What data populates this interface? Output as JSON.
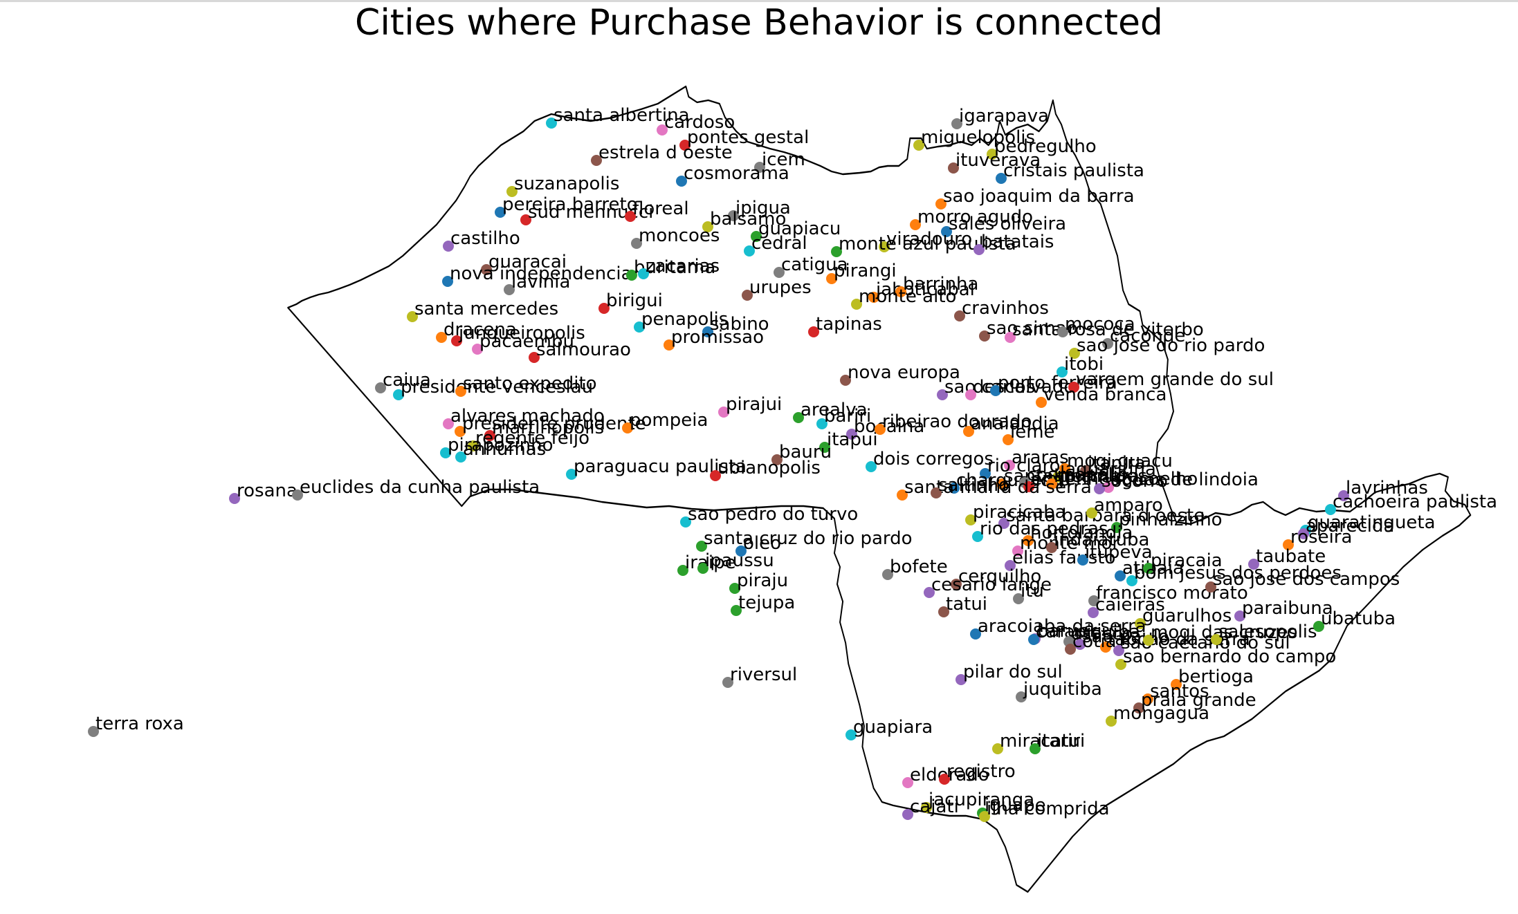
{
  "title": "Cities where Purchase Behavior is connected",
  "palette": {
    "blue": "#1f77b4",
    "orange": "#ff7f0e",
    "green": "#2ca02c",
    "red": "#d62728",
    "purple": "#9467bd",
    "brown": "#8c564b",
    "pink": "#e377c2",
    "gray": "#7f7f7f",
    "olive": "#bcbd22",
    "cyan": "#17becf"
  },
  "cities": [
    {
      "name": "santa albertina",
      "color": "cyan"
    },
    {
      "name": "cardoso",
      "color": "pink"
    },
    {
      "name": "pontes gestal",
      "color": "red"
    },
    {
      "name": "estrela d oeste",
      "color": "brown"
    },
    {
      "name": "icem",
      "color": "gray"
    },
    {
      "name": "cosmorama",
      "color": "blue"
    },
    {
      "name": "suzanapolis",
      "color": "olive"
    },
    {
      "name": "pereira barreto",
      "color": "blue"
    },
    {
      "name": "sud mennucci",
      "color": "red"
    },
    {
      "name": "floreal",
      "color": "red"
    },
    {
      "name": "ipigua",
      "color": "gray"
    },
    {
      "name": "balsamo",
      "color": "olive"
    },
    {
      "name": "guapiacu",
      "color": "green"
    },
    {
      "name": "moncoes",
      "color": "gray"
    },
    {
      "name": "cedral",
      "color": "cyan"
    },
    {
      "name": "castilho",
      "color": "purple"
    },
    {
      "name": "guaracai",
      "color": "brown"
    },
    {
      "name": "nova independencia",
      "color": "blue"
    },
    {
      "name": "buritama",
      "color": "green"
    },
    {
      "name": "zacarias",
      "color": "cyan"
    },
    {
      "name": "lavinia",
      "color": "gray"
    },
    {
      "name": "catigua",
      "color": "gray"
    },
    {
      "name": "urupes",
      "color": "brown"
    },
    {
      "name": "birigui",
      "color": "red"
    },
    {
      "name": "santa mercedes",
      "color": "olive"
    },
    {
      "name": "penapolis",
      "color": "cyan"
    },
    {
      "name": "sabino",
      "color": "blue"
    },
    {
      "name": "dracena",
      "color": "orange"
    },
    {
      "name": "junqueiropolis",
      "color": "red"
    },
    {
      "name": "pacaembu",
      "color": "pink"
    },
    {
      "name": "promissao",
      "color": "orange"
    },
    {
      "name": "salmourao",
      "color": "red"
    },
    {
      "name": "tapinas",
      "color": "red"
    },
    {
      "name": "caiua",
      "color": "gray"
    },
    {
      "name": "presidente venceslau",
      "color": "cyan"
    },
    {
      "name": "santo expedito",
      "color": "orange"
    },
    {
      "name": "alvares machado",
      "color": "pink"
    },
    {
      "name": "presidente prudente",
      "color": "orange"
    },
    {
      "name": "martinopolis",
      "color": "red"
    },
    {
      "name": "pompeia",
      "color": "orange"
    },
    {
      "name": "regente feijo",
      "color": "olive"
    },
    {
      "name": "pirapozinho",
      "color": "cyan"
    },
    {
      "name": "anhumas",
      "color": "cyan"
    },
    {
      "name": "pirajui",
      "color": "pink"
    },
    {
      "name": "arealva",
      "color": "green"
    },
    {
      "name": "bariri",
      "color": "cyan"
    },
    {
      "name": "bocaina",
      "color": "purple"
    },
    {
      "name": "itapui",
      "color": "green"
    },
    {
      "name": "bauru",
      "color": "brown"
    },
    {
      "name": "paraguacu paulista",
      "color": "cyan"
    },
    {
      "name": "ubianopolis",
      "color": "red"
    },
    {
      "name": "rosana",
      "color": "purple"
    },
    {
      "name": "euclides da cunha paulista",
      "color": "gray"
    },
    {
      "name": "sao pedro do turvo",
      "color": "cyan"
    },
    {
      "name": "santa cruz do rio pardo",
      "color": "green"
    },
    {
      "name": "oleo",
      "color": "blue"
    },
    {
      "name": "iraipe",
      "color": "green"
    },
    {
      "name": "ipaussu",
      "color": "green"
    },
    {
      "name": "piraju",
      "color": "green"
    },
    {
      "name": "tejupa",
      "color": "green"
    },
    {
      "name": "riversul",
      "color": "gray"
    },
    {
      "name": "terra roxa",
      "color": "gray"
    },
    {
      "name": "guapiara",
      "color": "cyan"
    },
    {
      "name": "igarapava",
      "color": "gray"
    },
    {
      "name": "miguelopolis",
      "color": "olive"
    },
    {
      "name": "pedregulho",
      "color": "olive"
    },
    {
      "name": "ituverava",
      "color": "brown"
    },
    {
      "name": "cristais paulista",
      "color": "blue"
    },
    {
      "name": "sao joaquim da barra",
      "color": "orange"
    },
    {
      "name": "morro agudo",
      "color": "orange"
    },
    {
      "name": "sales oliveira",
      "color": "blue"
    },
    {
      "name": "viradouro",
      "color": "olive"
    },
    {
      "name": "monte azul paulista",
      "color": "green"
    },
    {
      "name": "jaboticabal",
      "color": "orange"
    },
    {
      "name": "batatais",
      "color": "purple"
    },
    {
      "name": "pirangi",
      "color": "orange"
    },
    {
      "name": "barrinha",
      "color": "orange"
    },
    {
      "name": "monte alto",
      "color": "olive"
    },
    {
      "name": "cravinhos",
      "color": "brown"
    },
    {
      "name": "sao simao",
      "color": "brown"
    },
    {
      "name": "santa rosa de viterbo",
      "color": "pink"
    },
    {
      "name": "mococa",
      "color": "gray"
    },
    {
      "name": "caconde",
      "color": "gray"
    },
    {
      "name": "sao jose do rio pardo",
      "color": "olive"
    },
    {
      "name": "itobi",
      "color": "cyan"
    },
    {
      "name": "nova europa",
      "color": "brown"
    },
    {
      "name": "sao carlos",
      "color": "purple"
    },
    {
      "name": "descalvado",
      "color": "pink"
    },
    {
      "name": "porto ferreira",
      "color": "blue"
    },
    {
      "name": "vargem grande do sul",
      "color": "red"
    },
    {
      "name": "venda branca",
      "color": "orange"
    },
    {
      "name": "ribeirao dourado",
      "color": "orange"
    },
    {
      "name": "analandia",
      "color": "orange"
    },
    {
      "name": "leme",
      "color": "orange"
    },
    {
      "name": "dois corregos",
      "color": "cyan"
    },
    {
      "name": "araras",
      "color": "pink"
    },
    {
      "name": "mogi guacu",
      "color": "orange"
    },
    {
      "name": "itapira",
      "color": "brown"
    },
    {
      "name": "jaguariuna",
      "color": "olive"
    },
    {
      "name": "rio claro",
      "color": "blue"
    },
    {
      "name": "santa gertrudes",
      "color": "orange"
    },
    {
      "name": "charqueada",
      "color": "blue"
    },
    {
      "name": "cosmopolis",
      "color": "gray"
    },
    {
      "name": "engenheiro coelho",
      "color": "red"
    },
    {
      "name": "holambra",
      "color": "orange"
    },
    {
      "name": "aguas de lindoia",
      "color": "pink"
    },
    {
      "name": "socorro",
      "color": "purple"
    },
    {
      "name": "santa maria da serra",
      "color": "orange"
    },
    {
      "name": "saltinho",
      "color": "brown"
    },
    {
      "name": "piracicaba",
      "color": "olive"
    },
    {
      "name": "santa barbara d oeste",
      "color": "purple"
    },
    {
      "name": "amparo",
      "color": "olive"
    },
    {
      "name": "pinhalzinho",
      "color": "green"
    },
    {
      "name": "rio das pedras",
      "color": "cyan"
    },
    {
      "name": "hortolandia",
      "color": "orange"
    },
    {
      "name": "monte mor",
      "color": "pink"
    },
    {
      "name": "indaiatuba",
      "color": "brown"
    },
    {
      "name": "elias fausto",
      "color": "purple"
    },
    {
      "name": "itupeva",
      "color": "blue"
    },
    {
      "name": "atibaia",
      "color": "blue"
    },
    {
      "name": "piracaia",
      "color": "green"
    },
    {
      "name": "bom jesus dos perdoes",
      "color": "cyan"
    },
    {
      "name": "bofete",
      "color": "gray"
    },
    {
      "name": "cerquilho",
      "color": "brown"
    },
    {
      "name": "cesario lange",
      "color": "purple"
    },
    {
      "name": "tatui",
      "color": "brown"
    },
    {
      "name": "itu",
      "color": "gray"
    },
    {
      "name": "francisco morato",
      "color": "gray"
    },
    {
      "name": "caieiras",
      "color": "purple"
    },
    {
      "name": "guarulhos",
      "color": "olive"
    },
    {
      "name": "aracoiaba da serra",
      "color": "blue"
    },
    {
      "name": "barueri",
      "color": "purple"
    },
    {
      "name": "carapicuiba",
      "color": "blue"
    },
    {
      "name": "osasco",
      "color": "gray"
    },
    {
      "name": "sao paulo",
      "color": "purple"
    },
    {
      "name": "taboao da serra",
      "color": "orange"
    },
    {
      "name": "cotia",
      "color": "brown"
    },
    {
      "name": "sao caetano do sul",
      "color": "purple"
    },
    {
      "name": "mogi das cruzes",
      "color": "olive"
    },
    {
      "name": "salesopolis",
      "color": "olive"
    },
    {
      "name": "sao bernardo do campo",
      "color": "olive"
    },
    {
      "name": "pilar do sul",
      "color": "purple"
    },
    {
      "name": "juquitiba",
      "color": "gray"
    },
    {
      "name": "bertioga",
      "color": "orange"
    },
    {
      "name": "santos",
      "color": "orange"
    },
    {
      "name": "praia grande",
      "color": "brown"
    },
    {
      "name": "mongagua",
      "color": "olive"
    },
    {
      "name": "miracatu",
      "color": "olive"
    },
    {
      "name": "itariri",
      "color": "green"
    },
    {
      "name": "eldorado",
      "color": "pink"
    },
    {
      "name": "registro",
      "color": "red"
    },
    {
      "name": "jacupiranga",
      "color": "olive"
    },
    {
      "name": "cajati",
      "color": "purple"
    },
    {
      "name": "iguape",
      "color": "green"
    },
    {
      "name": "ilha comprida",
      "color": "olive"
    },
    {
      "name": "lavrinhas",
      "color": "purple"
    },
    {
      "name": "cachoeira paulista",
      "color": "cyan"
    },
    {
      "name": "guaratingueta",
      "color": "cyan"
    },
    {
      "name": "aparecida",
      "color": "purple"
    },
    {
      "name": "roseira",
      "color": "orange"
    },
    {
      "name": "taubate",
      "color": "purple"
    },
    {
      "name": "sao jose dos campos",
      "color": "brown"
    },
    {
      "name": "paraibuna",
      "color": "purple"
    },
    {
      "name": "ubatuba",
      "color": "green"
    }
  ]
}
